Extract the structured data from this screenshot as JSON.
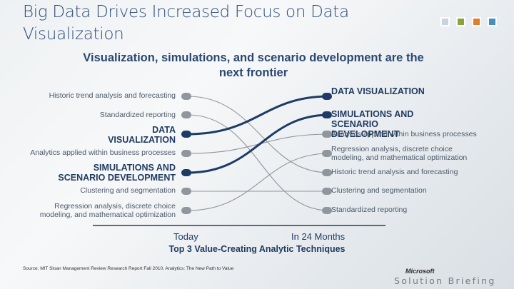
{
  "title": "Big Data Drives Increased Focus on Data Visualization",
  "subtitle": "Visualization, simulations, and scenario development are the next frontier",
  "brand_squares": [
    "#c9d3dc",
    "#8aa33b",
    "#e07d2a",
    "#4a8ec0"
  ],
  "left_items": [
    "Historic trend analysis and forecasting",
    "Standardized reporting",
    "DATA VISUALIZATION",
    "Analytics applied within business processes",
    "SIMULATIONS AND SCENARIO DEVELOPMENT",
    "Clustering and segmentation",
    "Regression analysis, discrete choice modeling, and mathematical optimization"
  ],
  "right_items": [
    "DATA VISUALIZATION",
    "SIMULATIONS AND SCENARIO DEVELOPMENT",
    "Analytics applied within business processes",
    "Regression analysis, discrete choice modeling, and mathematical optimization",
    "Historic trend analysis and forecasting",
    "Clustering and segmentation",
    "Standardized reporting"
  ],
  "axis": {
    "left_label": "Today",
    "right_label": "In 24 Months",
    "title": "Top 3 Value-Creating Analytic Techniques"
  },
  "source": "Source: MIT Sloan Management Review Research Report Fall 2010, Analytics: The New Path to Value",
  "footer": {
    "logo_text": "Microsoft",
    "product": "Solution Briefing"
  }
}
